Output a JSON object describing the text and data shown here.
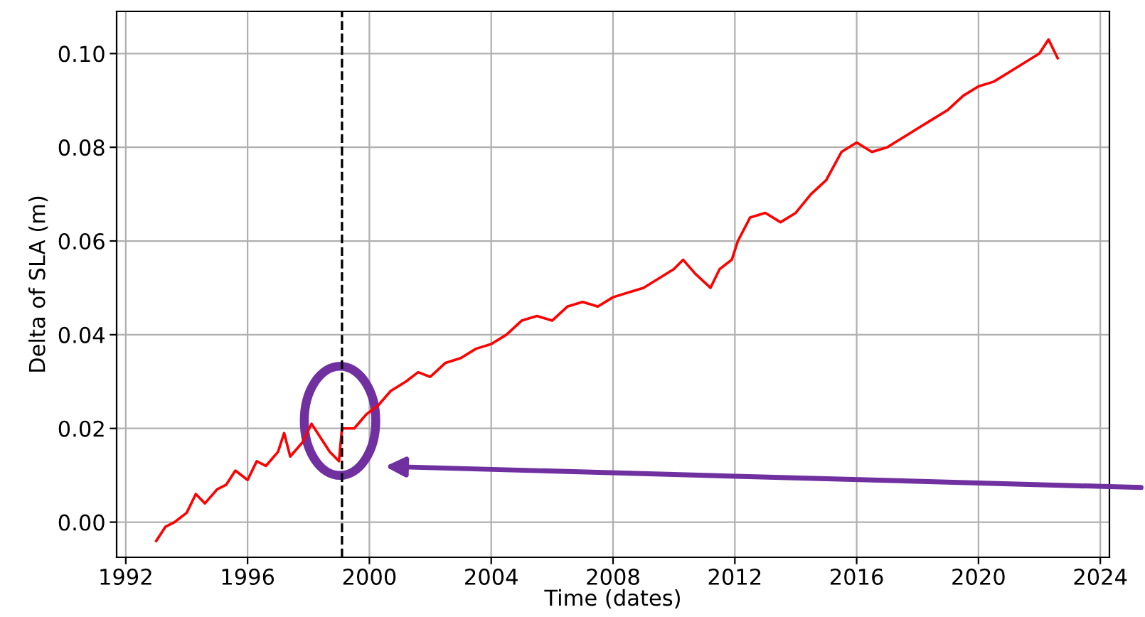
{
  "chart_data": {
    "type": "line",
    "xlabel": "Time (dates)",
    "ylabel": "Delta of SLA (m)",
    "x": [
      1993.0,
      1993.3,
      1993.6,
      1994.0,
      1994.3,
      1994.6,
      1995.0,
      1995.3,
      1995.6,
      1996.0,
      1996.3,
      1996.6,
      1997.0,
      1997.2,
      1997.4,
      1997.8,
      1998.1,
      1998.4,
      1998.7,
      1999.0,
      1999.1,
      1999.5,
      1999.9,
      2000.3,
      2000.7,
      2001.2,
      2001.6,
      2002.0,
      2002.5,
      2003.0,
      2003.5,
      2004.0,
      2004.5,
      2005.0,
      2005.5,
      2006.0,
      2006.5,
      2007.0,
      2007.5,
      2008.0,
      2008.5,
      2009.0,
      2009.5,
      2010.0,
      2010.3,
      2010.7,
      2011.2,
      2011.5,
      2011.9,
      2012.1,
      2012.5,
      2013.0,
      2013.5,
      2014.0,
      2014.5,
      2015.0,
      2015.5,
      2016.0,
      2016.5,
      2017.0,
      2017.5,
      2018.0,
      2018.5,
      2019.0,
      2019.5,
      2020.0,
      2020.5,
      2021.0,
      2021.5,
      2022.0,
      2022.3,
      2022.6
    ],
    "series": [
      {
        "color": "#ff0000",
        "values": [
          -0.004,
          -0.001,
          0.0,
          0.002,
          0.006,
          0.004,
          0.007,
          0.008,
          0.011,
          0.009,
          0.013,
          0.012,
          0.015,
          0.019,
          0.014,
          0.017,
          0.021,
          0.018,
          0.015,
          0.013,
          0.02,
          0.02,
          0.023,
          0.025,
          0.028,
          0.03,
          0.032,
          0.031,
          0.034,
          0.035,
          0.037,
          0.038,
          0.04,
          0.043,
          0.044,
          0.043,
          0.046,
          0.047,
          0.046,
          0.048,
          0.049,
          0.05,
          0.052,
          0.054,
          0.056,
          0.053,
          0.05,
          0.054,
          0.056,
          0.06,
          0.065,
          0.066,
          0.064,
          0.066,
          0.07,
          0.073,
          0.079,
          0.081,
          0.079,
          0.08,
          0.082,
          0.084,
          0.086,
          0.088,
          0.091,
          0.093,
          0.094,
          0.096,
          0.098,
          0.1,
          0.103,
          0.099
        ]
      }
    ],
    "xlim": [
      1991.7,
      2024.3
    ],
    "ylim": [
      -0.0075,
      0.109
    ],
    "xticks": [
      1992,
      1996,
      2000,
      2004,
      2008,
      2012,
      2016,
      2020,
      2024
    ],
    "yticks": [
      {
        "value": 0,
        "label": "0.00"
      },
      {
        "value": 0.02,
        "label": "0.02"
      },
      {
        "value": 0.04,
        "label": "0.04"
      },
      {
        "value": 0.06,
        "label": "0.06"
      },
      {
        "value": 0.08,
        "label": "0.08"
      },
      {
        "value": 0.1,
        "label": "0.10"
      }
    ],
    "ref_lines": [
      {
        "axis": "x",
        "value": 1999.1,
        "color": "#000000",
        "line_style": "dashed"
      }
    ],
    "grid": true,
    "legend": false
  }
}
